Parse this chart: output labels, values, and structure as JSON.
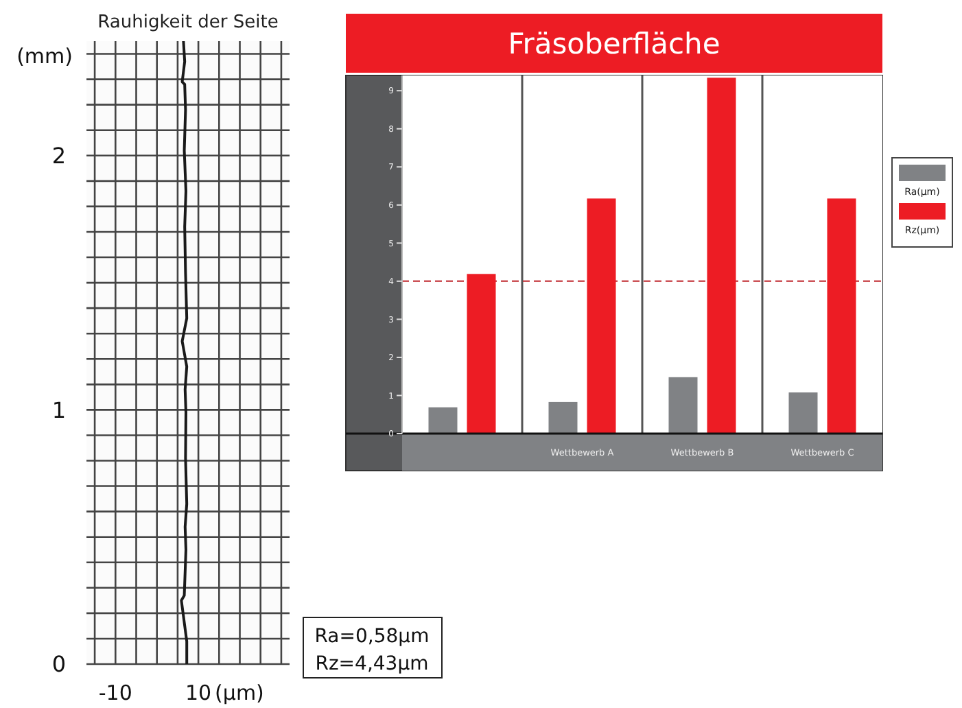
{
  "chart_data": [
    {
      "type": "line",
      "title": "Rauhigkeit der Seite",
      "ylabel": "(mm)",
      "xlabel": "(μm)",
      "color": "#1a1a1a",
      "x": [
        6.4,
        6.7,
        6.1,
        6.7,
        6.9,
        6.6,
        7.0,
        6.7,
        6.9,
        7.2,
        6.1,
        7.2,
        6.8,
        7.0,
        6.9,
        7.2,
        6.8,
        7.0,
        6.6,
        5.9,
        7.2,
        7.2
      ],
      "values": [
        2.45,
        2.37,
        2.29,
        2.28,
        2.18,
        2.02,
        1.86,
        1.72,
        1.54,
        1.36,
        1.27,
        1.17,
        1.08,
        0.99,
        0.81,
        0.63,
        0.54,
        0.45,
        0.27,
        0.25,
        0.09,
        0
      ],
      "xlim": [
        -17,
        32
      ],
      "xticks": [
        {
          "value": -15,
          "label": null
        },
        -10,
        {
          "value": -5,
          "label": null
        },
        {
          "value": 0,
          "label": null
        },
        {
          "value": 5,
          "label": null
        },
        10,
        {
          "value": 15,
          "label": null
        },
        {
          "value": 20,
          "label": null
        },
        {
          "value": 25,
          "label": null
        },
        {
          "value": 30,
          "label": null
        }
      ],
      "ylim": [
        0,
        2.45
      ],
      "yticks": [
        0,
        {
          "value": 0.1,
          "label": null
        },
        {
          "value": 0.2,
          "label": null
        },
        {
          "value": 0.3,
          "label": null
        },
        {
          "value": 0.4,
          "label": null
        },
        {
          "value": 0.5,
          "label": null
        },
        {
          "value": 0.6,
          "label": null
        },
        {
          "value": 0.7,
          "label": null
        },
        {
          "value": 0.8,
          "label": null
        },
        {
          "value": 0.9,
          "label": null
        },
        1,
        {
          "value": 1.1,
          "label": null
        },
        {
          "value": 1.2,
          "label": null
        },
        {
          "value": 1.3,
          "label": null
        },
        {
          "value": 1.4,
          "label": null
        },
        {
          "value": 1.5,
          "label": null
        },
        {
          "value": 1.6,
          "label": null
        },
        {
          "value": 1.7,
          "label": null
        },
        {
          "value": 1.8,
          "label": null
        },
        {
          "value": 1.9,
          "label": null
        },
        2,
        {
          "value": 2.1,
          "label": null
        },
        {
          "value": 2.2,
          "label": null
        },
        {
          "value": 2.3,
          "label": null
        },
        {
          "value": 2.4,
          "label": null
        }
      ],
      "grid": true,
      "annotations": [
        "Ra=0,58μm",
        "Rz=4,43μm"
      ]
    },
    {
      "type": "bar",
      "title": "Fräsoberfläche",
      "categories": [
        null,
        "Wettbewerb A",
        "Wettbewerb B",
        "Wettbewerb C"
      ],
      "series": [
        {
          "name": "Ra(μm)",
          "color": "#808285",
          "values": [
            0.69,
            0.83,
            1.48,
            1.08
          ]
        },
        {
          "name": "Rz(μm)",
          "color": "#ed1c24",
          "values": [
            4.19,
            6.17,
            9.34,
            6.17
          ]
        }
      ],
      "ylim": [
        0,
        9.4
      ],
      "yticks": [
        0,
        1,
        2,
        3,
        4,
        5,
        6,
        7,
        8,
        9
      ],
      "ref_lines": [
        {
          "axis": "y",
          "value": 4,
          "color": "#c0272d",
          "line_style": "dashed"
        }
      ],
      "legend": "right"
    }
  ]
}
